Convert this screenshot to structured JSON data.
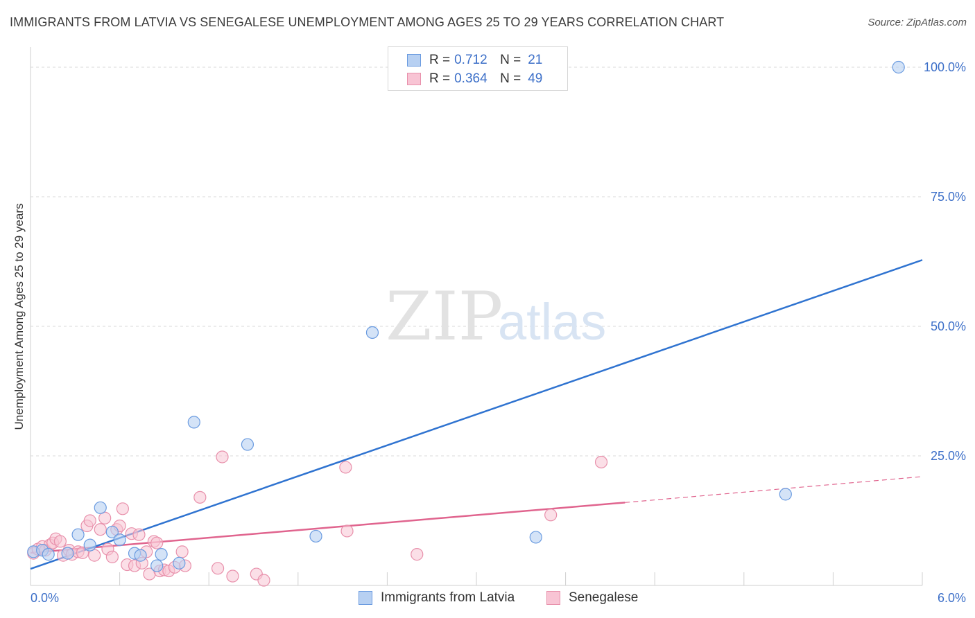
{
  "title": "IMMIGRANTS FROM LATVIA VS SENEGALESE UNEMPLOYMENT AMONG AGES 25 TO 29 YEARS CORRELATION CHART",
  "source": "Source: ZipAtlas.com",
  "watermark": {
    "zip": "ZIP",
    "atlas": "atlas"
  },
  "legend": {
    "rows": [
      {
        "r_label": "R =",
        "r_value": "0.712",
        "n_label": "N =",
        "n_value": "21"
      },
      {
        "r_label": "R =",
        "r_value": "0.364",
        "n_label": "N =",
        "n_value": "49"
      }
    ]
  },
  "colors": {
    "blue_fill": "#b7d0f2",
    "blue_stroke": "#6a9be0",
    "blue_line": "#2f73d0",
    "pink_fill": "#f8c4d4",
    "pink_stroke": "#e890ab",
    "pink_line": "#e0648e",
    "grid": "#d9d9d9",
    "tick_label": "#3c6fc8"
  },
  "chart_data": {
    "type": "scatter",
    "title": "IMMIGRANTS FROM LATVIA VS SENEGALESE UNEMPLOYMENT AMONG AGES 25 TO 29 YEARS CORRELATION CHART",
    "xlabel": "",
    "ylabel": "Unemployment Among Ages 25 to 29 years",
    "xlim": [
      0,
      6
    ],
    "ylim": [
      0,
      100
    ],
    "x_tick_labels": [
      "0.0%",
      "6.0%"
    ],
    "y_ticks": [
      25,
      50,
      75,
      100
    ],
    "y_tick_labels": [
      "25.0%",
      "50.0%",
      "75.0%",
      "100.0%"
    ],
    "series": [
      {
        "name": "Immigrants from Latvia",
        "r": 0.712,
        "n": 21,
        "points": [
          [
            0.02,
            6.5
          ],
          [
            0.08,
            6.8
          ],
          [
            0.12,
            6.0
          ],
          [
            0.25,
            6.2
          ],
          [
            0.32,
            9.8
          ],
          [
            0.4,
            7.8
          ],
          [
            0.47,
            15.0
          ],
          [
            0.55,
            10.3
          ],
          [
            0.6,
            8.8
          ],
          [
            0.7,
            6.2
          ],
          [
            0.74,
            5.8
          ],
          [
            0.85,
            3.8
          ],
          [
            0.88,
            6.0
          ],
          [
            1.0,
            4.3
          ],
          [
            1.1,
            31.5
          ],
          [
            1.46,
            27.2
          ],
          [
            1.92,
            9.5
          ],
          [
            2.3,
            48.8
          ],
          [
            3.4,
            9.3
          ],
          [
            5.08,
            17.6
          ],
          [
            5.84,
            100.0
          ]
        ],
        "trend": {
          "x0": 0,
          "y0": 3.2,
          "x1": 6.0,
          "y1": 62.8
        }
      },
      {
        "name": "Senegalese",
        "r": 0.364,
        "n": 49,
        "points": [
          [
            0.02,
            6.2
          ],
          [
            0.05,
            7.0
          ],
          [
            0.08,
            7.5
          ],
          [
            0.1,
            6.8
          ],
          [
            0.13,
            7.8
          ],
          [
            0.15,
            8.2
          ],
          [
            0.17,
            9.0
          ],
          [
            0.2,
            8.5
          ],
          [
            0.22,
            5.8
          ],
          [
            0.26,
            6.8
          ],
          [
            0.28,
            6.0
          ],
          [
            0.32,
            6.5
          ],
          [
            0.35,
            6.3
          ],
          [
            0.38,
            11.5
          ],
          [
            0.4,
            12.5
          ],
          [
            0.43,
            5.8
          ],
          [
            0.47,
            10.8
          ],
          [
            0.5,
            13.0
          ],
          [
            0.52,
            7.0
          ],
          [
            0.55,
            5.5
          ],
          [
            0.58,
            10.8
          ],
          [
            0.6,
            11.5
          ],
          [
            0.62,
            14.8
          ],
          [
            0.65,
            4.0
          ],
          [
            0.68,
            10.0
          ],
          [
            0.7,
            3.8
          ],
          [
            0.73,
            9.8
          ],
          [
            0.75,
            4.3
          ],
          [
            0.78,
            6.5
          ],
          [
            0.8,
            2.2
          ],
          [
            0.83,
            8.5
          ],
          [
            0.85,
            8.2
          ],
          [
            0.87,
            2.8
          ],
          [
            0.9,
            3.0
          ],
          [
            0.93,
            2.8
          ],
          [
            0.97,
            3.5
          ],
          [
            1.02,
            6.5
          ],
          [
            1.04,
            3.8
          ],
          [
            1.14,
            17.0
          ],
          [
            1.26,
            3.3
          ],
          [
            1.29,
            24.8
          ],
          [
            1.36,
            1.8
          ],
          [
            1.52,
            2.2
          ],
          [
            1.57,
            1.0
          ],
          [
            2.12,
            22.8
          ],
          [
            2.13,
            10.5
          ],
          [
            2.6,
            6.0
          ],
          [
            3.5,
            13.6
          ],
          [
            3.84,
            23.8
          ]
        ],
        "trend": {
          "x0": 0,
          "y0": 6.3,
          "x1": 4.0,
          "y1": 16.0
        },
        "trend_dashed": {
          "x0": 4.0,
          "y0": 16.0,
          "x1": 6.0,
          "y1": 21.0
        }
      }
    ]
  }
}
